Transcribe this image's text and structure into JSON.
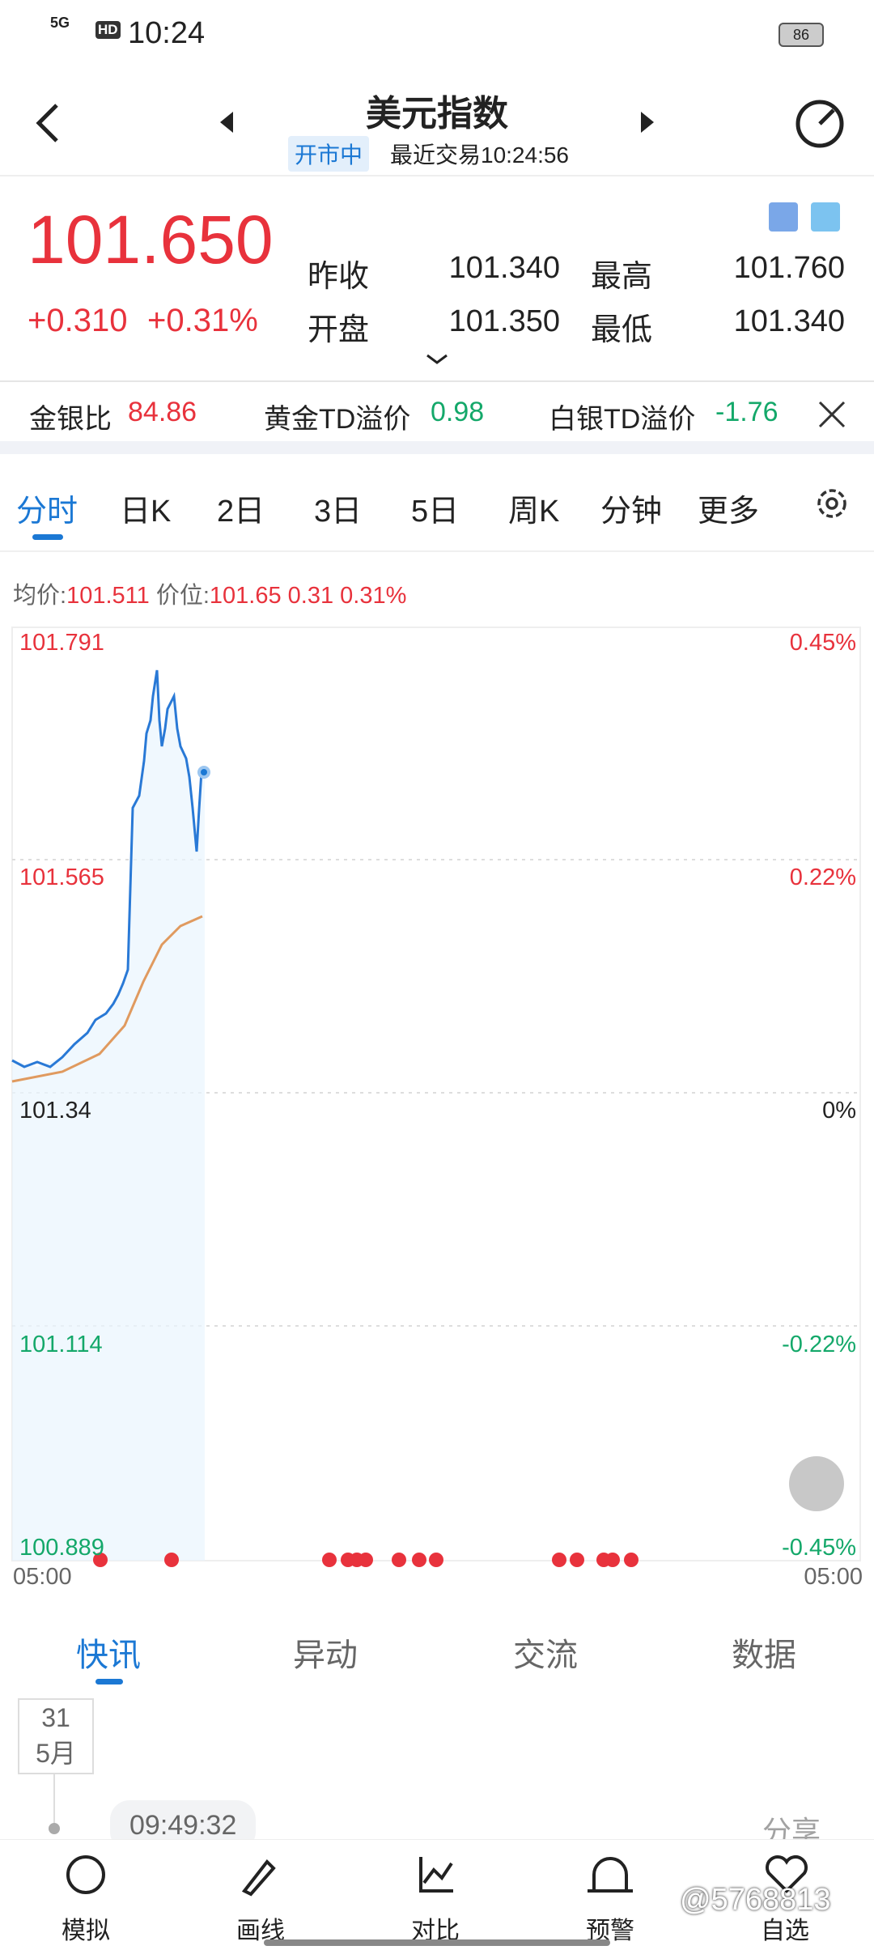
{
  "status_bar": {
    "network": "5G",
    "hd": "HD",
    "time": "10:24",
    "battery": "86"
  },
  "header": {
    "title": "美元指数",
    "status": "开市中",
    "last_trade": "最近交易10:24:56"
  },
  "quote": {
    "price": "101.650",
    "change": "+0.310",
    "change_pct": "+0.31%",
    "fields": [
      {
        "label": "昨收",
        "value": "101.340"
      },
      {
        "label": "最高",
        "value": "101.760"
      },
      {
        "label": "开盘",
        "value": "101.350"
      },
      {
        "label": "最低",
        "value": "101.340"
      }
    ]
  },
  "ratios": [
    {
      "label": "金银比",
      "value": "84.86"
    },
    {
      "label": "黄金TD溢价",
      "value": "0.98"
    },
    {
      "label": "白银TD溢价",
      "value": "-1.76"
    }
  ],
  "period_tabs": [
    "分时",
    "日K",
    "2日",
    "3日",
    "5日",
    "周K",
    "分钟",
    "更多"
  ],
  "info_line": {
    "avg_label": "均价:",
    "avg": "101.511",
    "price_label": "价位:",
    "price": "101.65",
    "change": "0.31",
    "change_pct": "0.31%"
  },
  "chart": {
    "left_labels": [
      "101.791",
      "101.565",
      "101.34",
      "101.114",
      "100.889"
    ],
    "right_labels": [
      "0.45%",
      "0.22%",
      "0%",
      "-0.22%",
      "-0.45%"
    ],
    "time_start": "05:00",
    "time_end": "05:00"
  },
  "news_tabs": [
    "快讯",
    "异动",
    "交流",
    "数据"
  ],
  "news": {
    "day": "31",
    "month": "5月",
    "time": "09:49:32",
    "share": "分享"
  },
  "bottom_nav": [
    "模拟",
    "画线",
    "对比",
    "预警",
    "自选"
  ],
  "watermark": "@5768813"
}
